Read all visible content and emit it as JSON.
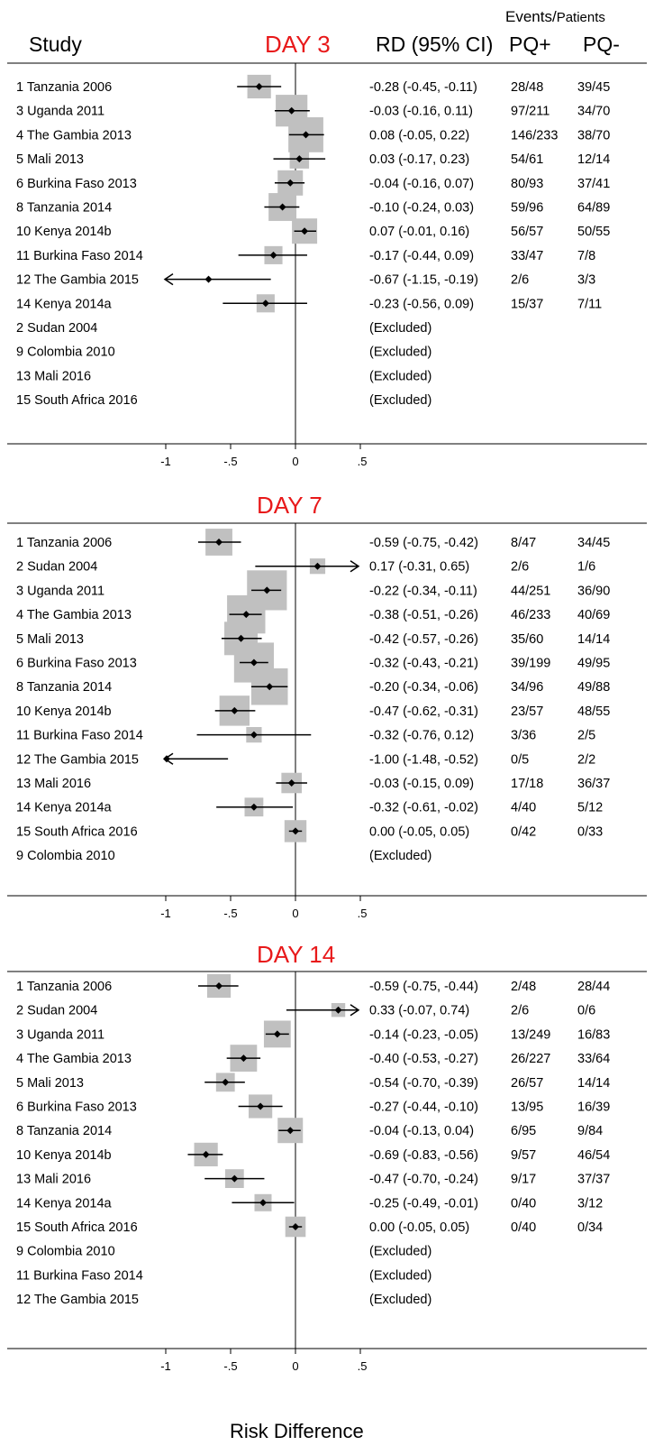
{
  "header": {
    "study": "Study",
    "rd": "RD (95% CI)",
    "events_patients_1": "Events/",
    "events_patients_2": "Patients",
    "pq_plus": "PQ+",
    "pq_minus": "PQ-"
  },
  "x_axis_label": "Risk Difference",
  "chart_data": [
    {
      "type": "forest",
      "title": "DAY 3",
      "xlim": [
        -1,
        0.5
      ],
      "xticks": [
        -1,
        -0.5,
        0,
        0.5
      ],
      "xtick_labels": [
        "-1",
        "-.5",
        "0",
        ".5"
      ],
      "rows": [
        {
          "study": "1 Tanzania 2006",
          "rd": -0.28,
          "lo": -0.45,
          "hi": -0.11,
          "w": 0.45,
          "text": "-0.28 (-0.45, -0.11)",
          "pq_plus": "28/48",
          "pq_minus": "39/45"
        },
        {
          "study": "3 Uganda 2011",
          "rd": -0.03,
          "lo": -0.16,
          "hi": 0.11,
          "w": 0.7,
          "text": "-0.03 (-0.16, 0.11)",
          "pq_plus": "97/211",
          "pq_minus": "34/70"
        },
        {
          "study": "4 The Gambia 2013",
          "rd": 0.08,
          "lo": -0.05,
          "hi": 0.22,
          "w": 0.8,
          "text": "0.08 (-0.05, 0.22)",
          "pq_plus": "146/233",
          "pq_minus": "38/70"
        },
        {
          "study": "5 Mali 2013",
          "rd": 0.03,
          "lo": -0.17,
          "hi": 0.23,
          "w": 0.32,
          "text": "0.03 (-0.17, 0.23)",
          "pq_plus": "54/61",
          "pq_minus": "12/14"
        },
        {
          "study": "6 Burkina Faso 2013",
          "rd": -0.04,
          "lo": -0.16,
          "hi": 0.07,
          "w": 0.5,
          "text": "-0.04 (-0.16, 0.07)",
          "pq_plus": "80/93",
          "pq_minus": "37/41"
        },
        {
          "study": "8 Tanzania 2014",
          "rd": -0.1,
          "lo": -0.24,
          "hi": 0.03,
          "w": 0.58,
          "text": "-0.10 (-0.24, 0.03)",
          "pq_plus": "59/96",
          "pq_minus": "64/89"
        },
        {
          "study": "10 Kenya 2014b",
          "rd": 0.07,
          "lo": -0.01,
          "hi": 0.16,
          "w": 0.5,
          "text": "0.07 (-0.01, 0.16)",
          "pq_plus": "56/57",
          "pq_minus": "50/55"
        },
        {
          "study": "11 Burkina Faso 2014",
          "rd": -0.17,
          "lo": -0.44,
          "hi": 0.09,
          "w": 0.28,
          "text": "-0.17 (-0.44, 0.09)",
          "pq_plus": "33/47",
          "pq_minus": "7/8"
        },
        {
          "study": "12 The Gambia 2015",
          "rd": -0.67,
          "lo": -1.15,
          "hi": -0.19,
          "w": 0.0,
          "text": "-0.67 (-1.15, -0.19)",
          "pq_plus": "2/6",
          "pq_minus": "3/3"
        },
        {
          "study": "14 Kenya 2014a",
          "rd": -0.23,
          "lo": -0.56,
          "hi": 0.09,
          "w": 0.28,
          "text": "-0.23 (-0.56, 0.09)",
          "pq_plus": "15/37",
          "pq_minus": "7/11"
        },
        {
          "study": "2 Sudan 2004",
          "text": "(Excluded)"
        },
        {
          "study": "9 Colombia 2010",
          "text": "(Excluded)"
        },
        {
          "study": "13 Mali 2016",
          "text": "(Excluded)"
        },
        {
          "study": "15 South Africa 2016",
          "text": "(Excluded)"
        }
      ]
    },
    {
      "type": "forest",
      "title": "DAY 7",
      "xlim": [
        -1,
        0.5
      ],
      "xticks": [
        -1,
        -0.5,
        0,
        0.5
      ],
      "xtick_labels": [
        "-1",
        "-.5",
        "0",
        ".5"
      ],
      "rows": [
        {
          "study": "1 Tanzania 2006",
          "rd": -0.59,
          "lo": -0.75,
          "hi": -0.42,
          "w": 0.55,
          "text": "-0.59 (-0.75, -0.42)",
          "pq_plus": "8/47",
          "pq_minus": "34/45"
        },
        {
          "study": "2 Sudan 2004",
          "rd": 0.17,
          "lo": -0.31,
          "hi": 0.65,
          "w": 0.2,
          "text": "0.17 (-0.31, 0.65)",
          "pq_plus": "2/6",
          "pq_minus": "1/6"
        },
        {
          "study": "3 Uganda 2011",
          "rd": -0.22,
          "lo": -0.34,
          "hi": -0.11,
          "w": 0.95,
          "text": "-0.22 (-0.34, -0.11)",
          "pq_plus": "44/251",
          "pq_minus": "36/90"
        },
        {
          "study": "4 The Gambia 2013",
          "rd": -0.38,
          "lo": -0.51,
          "hi": -0.26,
          "w": 0.9,
          "text": "-0.38 (-0.51, -0.26)",
          "pq_plus": "46/233",
          "pq_minus": "40/69"
        },
        {
          "study": "5 Mali 2013",
          "rd": -0.42,
          "lo": -0.57,
          "hi": -0.26,
          "w": 0.75,
          "text": "-0.42 (-0.57, -0.26)",
          "pq_plus": "35/60",
          "pq_minus": "14/14"
        },
        {
          "study": "6 Burkina Faso 2013",
          "rd": -0.32,
          "lo": -0.43,
          "hi": -0.21,
          "w": 0.95,
          "text": "-0.32 (-0.43, -0.21)",
          "pq_plus": "39/199",
          "pq_minus": "49/95"
        },
        {
          "study": "8 Tanzania 2014",
          "rd": -0.2,
          "lo": -0.34,
          "hi": -0.06,
          "w": 0.85,
          "text": "-0.20 (-0.34, -0.06)",
          "pq_plus": "34/96",
          "pq_minus": "49/88"
        },
        {
          "study": "10 Kenya 2014b",
          "rd": -0.47,
          "lo": -0.62,
          "hi": -0.31,
          "w": 0.65,
          "text": "-0.47 (-0.62, -0.31)",
          "pq_plus": "23/57",
          "pq_minus": "48/55"
        },
        {
          "study": "11 Burkina Faso 2014",
          "rd": -0.32,
          "lo": -0.76,
          "hi": 0.12,
          "w": 0.2,
          "text": "-0.32 (-0.76, 0.12)",
          "pq_plus": "3/36",
          "pq_minus": "2/5"
        },
        {
          "study": "12 The Gambia 2015",
          "rd": -1.0,
          "lo": -1.48,
          "hi": -0.52,
          "w": 0.0,
          "text": "-1.00 (-1.48, -0.52)",
          "pq_plus": "0/5",
          "pq_minus": "2/2"
        },
        {
          "study": "13 Mali 2016",
          "rd": -0.03,
          "lo": -0.15,
          "hi": 0.09,
          "w": 0.35,
          "text": "-0.03 (-0.15, 0.09)",
          "pq_plus": "17/18",
          "pq_minus": "36/37"
        },
        {
          "study": "14 Kenya 2014a",
          "rd": -0.32,
          "lo": -0.61,
          "hi": -0.02,
          "w": 0.3,
          "text": "-0.32 (-0.61, -0.02)",
          "pq_plus": "4/40",
          "pq_minus": "5/12"
        },
        {
          "study": "15 South Africa 2016",
          "rd": 0.0,
          "lo": -0.05,
          "hi": 0.05,
          "w": 0.4,
          "text": "0.00 (-0.05, 0.05)",
          "pq_plus": "0/42",
          "pq_minus": "0/33"
        },
        {
          "study": "9 Colombia 2010",
          "text": "(Excluded)"
        }
      ]
    },
    {
      "type": "forest",
      "title": "DAY 14",
      "xlim": [
        -1,
        0.5
      ],
      "xticks": [
        -1,
        -0.5,
        0,
        0.5
      ],
      "xtick_labels": [
        "-1",
        "-.5",
        "0",
        ".5"
      ],
      "rows": [
        {
          "study": "1 Tanzania 2006",
          "rd": -0.59,
          "lo": -0.75,
          "hi": -0.44,
          "w": 0.45,
          "text": "-0.59 (-0.75, -0.44)",
          "pq_plus": "2/48",
          "pq_minus": "28/44"
        },
        {
          "study": "2 Sudan 2004",
          "rd": 0.33,
          "lo": -0.07,
          "hi": 0.74,
          "w": 0.15,
          "text": "0.33 (-0.07, 0.74)",
          "pq_plus": "2/6",
          "pq_minus": "0/6"
        },
        {
          "study": "3 Uganda 2011",
          "rd": -0.14,
          "lo": -0.23,
          "hi": -0.05,
          "w": 0.55,
          "text": "-0.14 (-0.23, -0.05)",
          "pq_plus": "13/249",
          "pq_minus": "16/83"
        },
        {
          "study": "4 The Gambia 2013",
          "rd": -0.4,
          "lo": -0.53,
          "hi": -0.27,
          "w": 0.55,
          "text": "-0.40 (-0.53, -0.27)",
          "pq_plus": "26/227",
          "pq_minus": "33/64"
        },
        {
          "study": "5 Mali 2013",
          "rd": -0.54,
          "lo": -0.7,
          "hi": -0.39,
          "w": 0.3,
          "text": "-0.54 (-0.70, -0.39)",
          "pq_plus": "26/57",
          "pq_minus": "14/14"
        },
        {
          "study": "6 Burkina Faso 2013",
          "rd": -0.27,
          "lo": -0.44,
          "hi": -0.1,
          "w": 0.45,
          "text": "-0.27 (-0.44, -0.10)",
          "pq_plus": "13/95",
          "pq_minus": "16/39"
        },
        {
          "study": "8 Tanzania 2014",
          "rd": -0.04,
          "lo": -0.13,
          "hi": 0.04,
          "w": 0.5,
          "text": "-0.04 (-0.13, 0.04)",
          "pq_plus": "6/95",
          "pq_minus": "9/84"
        },
        {
          "study": "10 Kenya 2014b",
          "rd": -0.69,
          "lo": -0.83,
          "hi": -0.56,
          "w": 0.45,
          "text": "-0.69 (-0.83, -0.56)",
          "pq_plus": "9/57",
          "pq_minus": "46/54"
        },
        {
          "study": "13 Mali 2016",
          "rd": -0.47,
          "lo": -0.7,
          "hi": -0.24,
          "w": 0.3,
          "text": "-0.47 (-0.70, -0.24)",
          "pq_plus": "9/17",
          "pq_minus": "37/37"
        },
        {
          "study": "14 Kenya 2014a",
          "rd": -0.25,
          "lo": -0.49,
          "hi": -0.01,
          "w": 0.25,
          "text": "-0.25 (-0.49, -0.01)",
          "pq_plus": "0/40",
          "pq_minus": "3/12"
        },
        {
          "study": "15 South Africa 2016",
          "rd": 0.0,
          "lo": -0.05,
          "hi": 0.05,
          "w": 0.35,
          "text": "0.00 (-0.05, 0.05)",
          "pq_plus": "0/40",
          "pq_minus": "0/34"
        },
        {
          "study": "9 Colombia 2010",
          "text": "(Excluded)"
        },
        {
          "study": "11 Burkina Faso 2014",
          "text": "(Excluded)"
        },
        {
          "study": "12 The Gambia 2015",
          "text": "(Excluded)"
        }
      ]
    }
  ]
}
